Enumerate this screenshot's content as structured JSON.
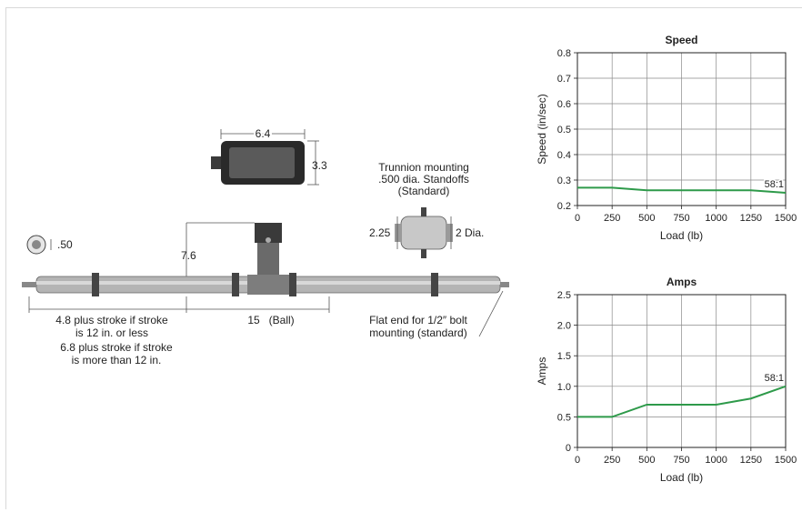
{
  "drawing": {
    "width_label": "6.4",
    "height_label": "3.3",
    "trunnion_title": [
      "Trunnion mounting",
      ".500 dia. Standoffs",
      "(Standard)"
    ],
    "trunnion_height_label": "2.25",
    "trunnion_dia_label": "2 Dia.",
    "hole_label": ".50",
    "motor_height_label": "7.6",
    "stroke_note": [
      "4.8 plus stroke if stroke",
      "is 12 in. or less",
      "6.8 plus stroke if stroke",
      "is more than 12 in."
    ],
    "ball_label": "15   (Ball)",
    "flat_end_note": [
      "Flat end for 1/2″ bolt",
      "mounting (standard)"
    ]
  },
  "colors": {
    "series": "#2e9a4a",
    "grid": "#8a8a8a",
    "axis": "#222222",
    "body": "#b4b4b4"
  },
  "chart_data": [
    {
      "type": "line",
      "title": "Speed",
      "xlabel": "Load (lb)",
      "ylabel": "Speed (in/sec)",
      "xlim": [
        0,
        1500
      ],
      "ylim": [
        0.2,
        0.8
      ],
      "xticks": [
        0,
        250,
        500,
        750,
        1000,
        1250,
        1500
      ],
      "yticks": [
        0.2,
        0.3,
        0.4,
        0.5,
        0.6,
        0.7,
        0.8
      ],
      "ytick_labels": [
        "0.2",
        "0.3",
        "0.4",
        "0.5",
        "0.6",
        "0.7",
        "0.8"
      ],
      "grid": true,
      "series": [
        {
          "name": "58:1",
          "x": [
            0,
            250,
            500,
            750,
            1000,
            1250,
            1500
          ],
          "y": [
            0.27,
            0.27,
            0.26,
            0.26,
            0.26,
            0.26,
            0.25
          ]
        }
      ]
    },
    {
      "type": "line",
      "title": "Amps",
      "xlabel": "Load (lb)",
      "ylabel": "Amps",
      "xlim": [
        0,
        1500
      ],
      "ylim": [
        0,
        2.5
      ],
      "xticks": [
        0,
        250,
        500,
        750,
        1000,
        1250,
        1500
      ],
      "yticks": [
        0,
        0.5,
        1.0,
        1.5,
        2.0,
        2.5
      ],
      "ytick_labels": [
        "0",
        "0.5",
        "1.0",
        "1.5",
        "2.0",
        "2.5"
      ],
      "grid": true,
      "series": [
        {
          "name": "58:1",
          "x": [
            0,
            250,
            500,
            750,
            1000,
            1250,
            1500
          ],
          "y": [
            0.5,
            0.5,
            0.7,
            0.7,
            0.7,
            0.8,
            1.0
          ]
        }
      ]
    }
  ]
}
